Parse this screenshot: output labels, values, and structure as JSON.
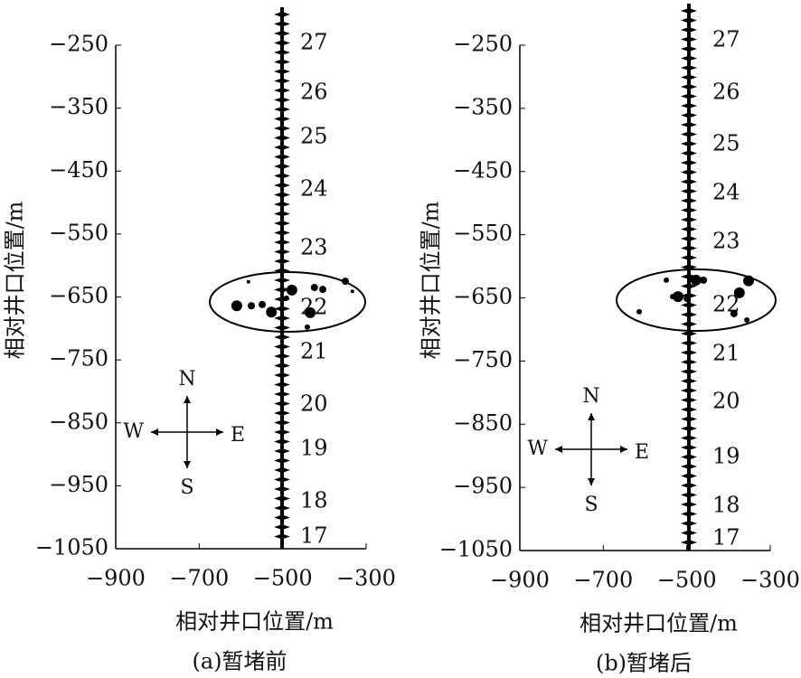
{
  "chart_data": [
    {
      "type": "scatter",
      "caption": "(a)暂堵前",
      "xlabel": "相对井口位置/m",
      "ylabel": "相对井口位置/m",
      "xlim": [
        -900,
        -300
      ],
      "ylim": [
        -1050,
        -250
      ],
      "xticks": [
        {
          "value": -900,
          "label": "−900"
        },
        {
          "value": -700,
          "label": "−700"
        },
        {
          "value": -500,
          "label": "−500"
        },
        {
          "value": -300,
          "label": "−300"
        }
      ],
      "yticks": [
        {
          "value": -250,
          "label": "−250"
        },
        {
          "value": -350,
          "label": "−350"
        },
        {
          "value": -450,
          "label": "−450"
        },
        {
          "value": -550,
          "label": "−550"
        },
        {
          "value": -650,
          "label": "−650"
        },
        {
          "value": -750,
          "label": "−750"
        },
        {
          "value": -850,
          "label": "−850"
        },
        {
          "value": -950,
          "label": "−950"
        },
        {
          "value": -1050,
          "label": "−1050"
        }
      ],
      "stages": [
        "27",
        "26",
        "25",
        "24",
        "23",
        "22",
        "21",
        "20",
        "19",
        "18",
        "17"
      ],
      "compass": [
        "N",
        "E",
        "S",
        "W"
      ],
      "color": "#000000",
      "x": [
        -610,
        -575,
        -549,
        -527,
        -582,
        -478,
        -434,
        -424,
        -404,
        -350,
        -333,
        -491,
        -441
      ],
      "y": [
        -664,
        -664,
        -662,
        -674,
        -626,
        -639,
        -675,
        -635,
        -638,
        -625,
        -641,
        -652,
        -698
      ],
      "sizes": [
        6,
        4,
        4,
        6,
        2,
        6,
        6,
        4,
        4,
        4,
        2,
        3,
        3
      ]
    },
    {
      "type": "scatter",
      "caption": "(b)暂堵后",
      "xlabel": "相对井口位置/m",
      "ylabel": "相对井口位置/m",
      "xlim": [
        -900,
        -300
      ],
      "ylim": [
        -1050,
        -250
      ],
      "xticks": [
        {
          "value": -900,
          "label": "−900"
        },
        {
          "value": -700,
          "label": "−700"
        },
        {
          "value": -500,
          "label": "−500"
        },
        {
          "value": -300,
          "label": "−300"
        }
      ],
      "yticks": [
        {
          "value": -250,
          "label": "−250"
        },
        {
          "value": -350,
          "label": "−350"
        },
        {
          "value": -450,
          "label": "−450"
        },
        {
          "value": -550,
          "label": "−550"
        },
        {
          "value": -650,
          "label": "−650"
        },
        {
          "value": -750,
          "label": "−750"
        },
        {
          "value": -850,
          "label": "−850"
        },
        {
          "value": -950,
          "label": "−950"
        },
        {
          "value": -1050,
          "label": "−1050"
        }
      ],
      "stages": [
        "27",
        "26",
        "25",
        "24",
        "23",
        "22",
        "21",
        "20",
        "19",
        "18",
        "17"
      ],
      "compass": [
        "N",
        "E",
        "S",
        "W"
      ],
      "color": "#000000",
      "x": [
        -614,
        -549,
        -534,
        -521,
        -478,
        -460,
        -374,
        -352,
        -387,
        -356,
        -499
      ],
      "y": [
        -672,
        -622,
        -648,
        -648,
        -622,
        -622,
        -642,
        -623,
        -675,
        -685,
        -651
      ],
      "sizes": [
        3,
        3,
        3,
        6,
        6,
        4,
        6,
        6,
        4,
        3,
        4
      ]
    }
  ]
}
